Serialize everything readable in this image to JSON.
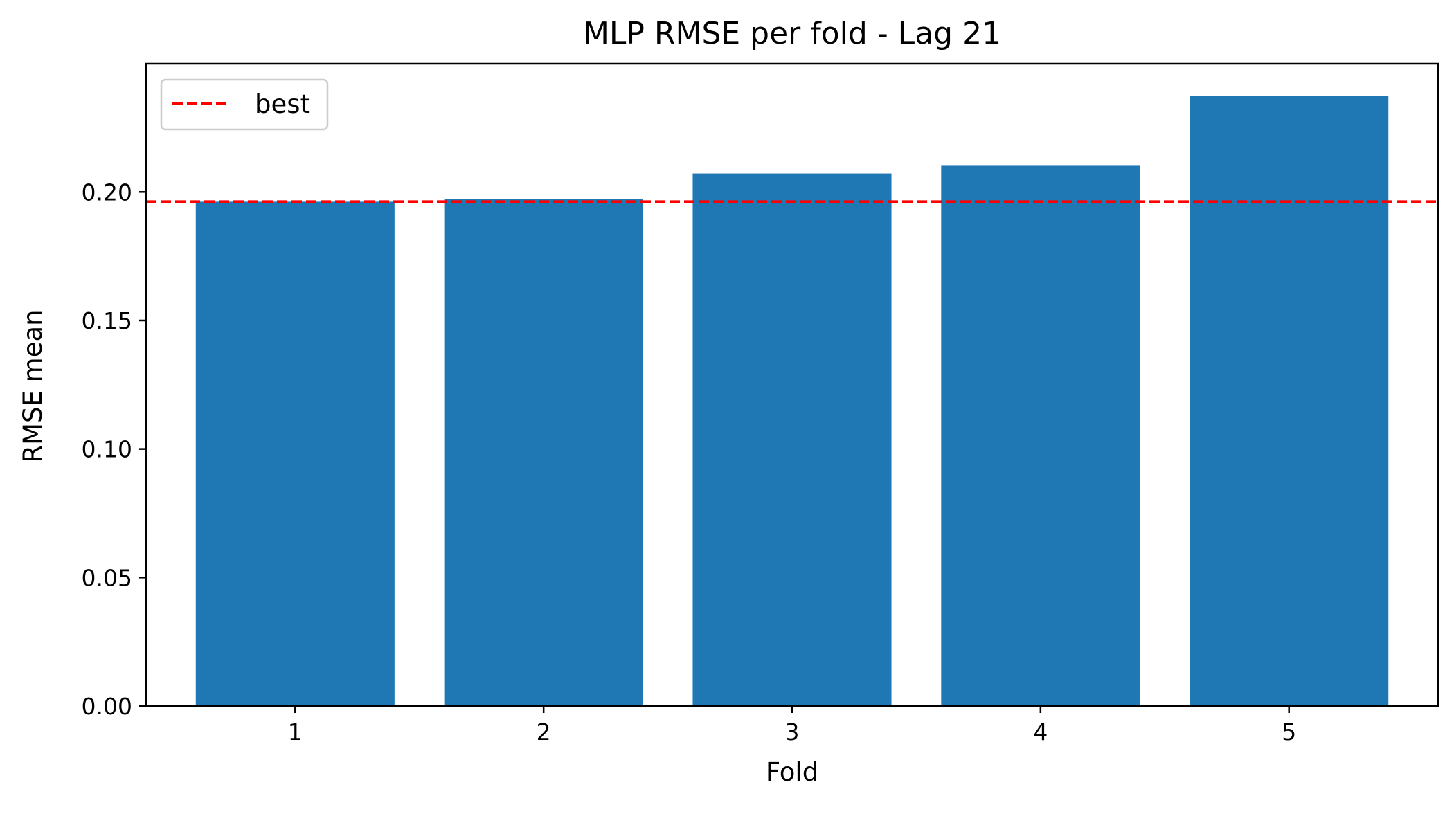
{
  "chart_data": {
    "type": "bar",
    "title": "MLP RMSE per fold - Lag 21",
    "xlabel": "Fold",
    "ylabel": "RMSE mean",
    "categories": [
      "1",
      "2",
      "3",
      "4",
      "5"
    ],
    "values": [
      0.1962,
      0.1972,
      0.2072,
      0.2102,
      0.2373
    ],
    "ylim": [
      0,
      0.2499
    ],
    "yticks": [
      0,
      0.05,
      0.1,
      0.15,
      0.2
    ],
    "ytick_labels": [
      "0.00",
      "0.05",
      "0.10",
      "0.15",
      "0.20"
    ],
    "reference_line": {
      "label": "best",
      "value": 0.1962,
      "style": "dashed"
    },
    "legend": {
      "placement": "top-left",
      "entries": [
        "best"
      ]
    },
    "grid": false,
    "colors": {
      "bar": "#1f77b4",
      "reference_line": "#ff0000"
    }
  }
}
